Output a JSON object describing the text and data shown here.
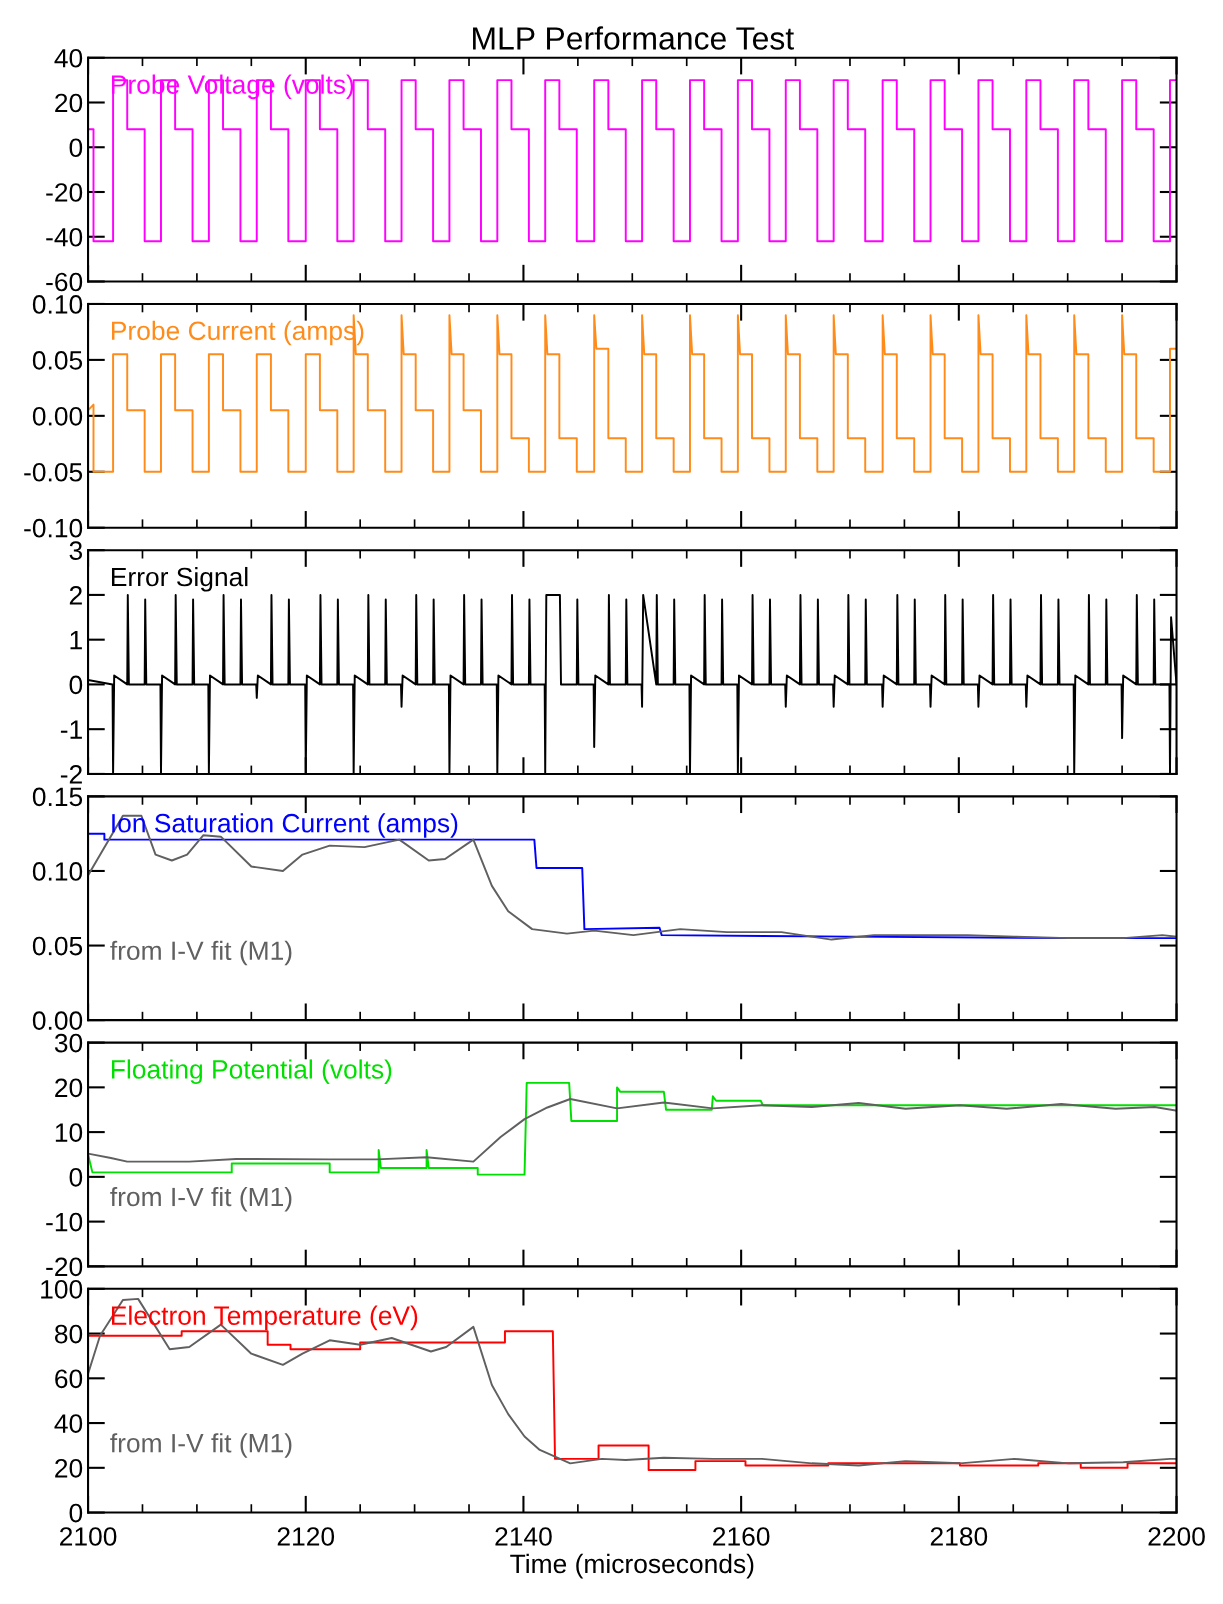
{
  "chart_data": [
    {
      "type": "line",
      "title": "MLP Performance Test",
      "xlim": [
        2100,
        2200
      ],
      "ylim": [
        -60,
        40
      ],
      "yticks": [
        -60,
        -40,
        -20,
        0,
        20,
        40
      ],
      "tick_labels": "y",
      "xticks": [
        2100,
        {
          "value": 2105,
          "label": null
        },
        {
          "value": 2110,
          "label": null
        },
        {
          "value": 2115,
          "label": null
        },
        2120,
        {
          "value": 2125,
          "label": null
        },
        {
          "value": 2130,
          "label": null
        },
        {
          "value": 2135,
          "label": null
        },
        2140,
        {
          "value": 2145,
          "label": null
        },
        {
          "value": 2150,
          "label": null
        },
        {
          "value": 2155,
          "label": null
        },
        2160,
        {
          "value": 2165,
          "label": null
        },
        {
          "value": 2170,
          "label": null
        },
        {
          "value": 2175,
          "label": null
        },
        2180,
        {
          "value": 2185,
          "label": null
        },
        {
          "value": 2190,
          "label": null
        },
        {
          "value": 2195,
          "label": null
        },
        2200
      ],
      "series": [
        {
          "name": "Probe Voltage (volts)",
          "color": "#ff00ff",
          "x": [
            2100,
            2100.5,
            2100.5,
            2102.3,
            2102.3,
            2103.6,
            2103.6,
            2105.2,
            2105.2,
            2106.7,
            2106.7,
            2108.0,
            2108.0,
            2109.6,
            2109.6,
            2111.1,
            2111.1,
            2112.4,
            2112.4,
            2114.0,
            2114.0,
            2115.5,
            2115.5,
            2116.8,
            2116.8,
            2118.4,
            2118.4,
            2120.0,
            2120.0,
            2121.3,
            2121.3,
            2122.9,
            2122.9,
            2124.4,
            2124.4,
            2125.7,
            2125.7,
            2127.3,
            2127.3,
            2128.8,
            2128.8,
            2130.1,
            2130.1,
            2131.7,
            2131.7,
            2133.2,
            2133.2,
            2134.5,
            2134.5,
            2136.1,
            2136.1,
            2137.6,
            2137.6,
            2138.9,
            2138.9,
            2140.5,
            2140.5,
            2142.0,
            2142.0,
            2143.3,
            2143.3,
            2144.9,
            2144.9,
            2146.5,
            2146.5,
            2147.8,
            2147.8,
            2149.4,
            2149.4,
            2150.9,
            2150.9,
            2152.2,
            2152.2,
            2153.8,
            2153.8,
            2155.3,
            2155.3,
            2156.6,
            2156.6,
            2158.2,
            2158.2,
            2159.7,
            2159.7,
            2161.0,
            2161.0,
            2162.6,
            2162.6,
            2164.1,
            2164.1,
            2165.4,
            2165.4,
            2167.0,
            2167.0,
            2168.5,
            2168.5,
            2169.8,
            2169.8,
            2171.4,
            2171.4,
            2173.0,
            2173.0,
            2174.3,
            2174.3,
            2175.9,
            2175.9,
            2177.4,
            2177.4,
            2178.7,
            2178.7,
            2180.3,
            2180.3,
            2181.8,
            2181.8,
            2183.1,
            2183.1,
            2184.7,
            2184.7,
            2186.2,
            2186.2,
            2187.5,
            2187.5,
            2189.1,
            2189.1,
            2190.6,
            2190.6,
            2191.9,
            2191.9,
            2193.5,
            2193.5,
            2195.0,
            2195.0,
            2196.3,
            2196.3,
            2197.9,
            2197.9,
            2199.4,
            2199.4,
            2200
          ],
          "values": [
            8,
            8,
            -42,
            -42,
            30,
            30,
            8,
            8,
            -42,
            -42,
            30,
            30,
            8,
            8,
            -42,
            -42,
            30,
            30,
            8,
            8,
            -42,
            -42,
            30,
            30,
            8,
            8,
            -42,
            -42,
            30,
            30,
            8,
            8,
            -42,
            -42,
            30,
            30,
            8,
            8,
            -42,
            -42,
            30,
            30,
            8,
            8,
            -42,
            -42,
            30,
            30,
            8,
            8,
            -42,
            -42,
            30,
            30,
            8,
            8,
            -42,
            -42,
            30,
            30,
            8,
            8,
            -42,
            -42,
            30,
            30,
            8,
            8,
            -42,
            -42,
            30,
            30,
            8,
            8,
            -42,
            -42,
            30,
            30,
            8,
            8,
            -42,
            -42,
            30,
            30,
            8,
            8,
            -42,
            -42,
            30,
            30,
            8,
            8,
            -42,
            -42,
            30,
            30,
            8,
            8,
            -42,
            -42,
            30,
            30,
            8,
            8,
            -42,
            -42,
            30,
            30,
            8,
            8,
            -42,
            -42,
            30,
            30,
            8,
            8,
            -42,
            -42,
            30,
            30,
            8,
            8,
            -42,
            -42,
            30,
            30,
            8,
            8,
            -42,
            -42,
            30,
            30,
            8,
            8,
            -42,
            -42,
            30,
            30
          ]
        }
      ]
    },
    {
      "type": "line",
      "xlim": [
        2100,
        2200
      ],
      "ylim": [
        -0.1,
        0.1
      ],
      "yticks": [
        {
          "value": -0.1,
          "label": "-0.10"
        },
        {
          "value": -0.05,
          "label": "-0.05"
        },
        {
          "value": 0,
          "label": "0.00"
        },
        {
          "value": 0.05,
          "label": "0.05"
        },
        {
          "value": 0.1,
          "label": "0.10"
        }
      ],
      "tick_labels": "y",
      "xticks": [
        2100,
        {
          "value": 2105,
          "label": null
        },
        {
          "value": 2110,
          "label": null
        },
        {
          "value": 2115,
          "label": null
        },
        2120,
        {
          "value": 2125,
          "label": null
        },
        {
          "value": 2130,
          "label": null
        },
        {
          "value": 2135,
          "label": null
        },
        2140,
        {
          "value": 2145,
          "label": null
        },
        {
          "value": 2150,
          "label": null
        },
        {
          "value": 2155,
          "label": null
        },
        2160,
        {
          "value": 2165,
          "label": null
        },
        {
          "value": 2170,
          "label": null
        },
        {
          "value": 2175,
          "label": null
        },
        2180,
        {
          "value": 2185,
          "label": null
        },
        {
          "value": 2190,
          "label": null
        },
        {
          "value": 2195,
          "label": null
        },
        2200
      ],
      "series": [
        {
          "name": "Probe Current (amps)",
          "color": "#ff8c1a",
          "x": [
            2100,
            2100.5,
            2100.5,
            2102.3,
            2102.3,
            2102.5,
            2103.6,
            2103.6,
            2105.2,
            2105.2,
            2106.7,
            2106.7,
            2106.9,
            2108.0,
            2108.0,
            2109.6,
            2109.6,
            2111.1,
            2111.1,
            2111.3,
            2112.4,
            2112.4,
            2114.0,
            2114.0,
            2115.5,
            2115.5,
            2115.7,
            2116.8,
            2116.8,
            2118.4,
            2118.4,
            2120.0,
            2120.0,
            2120.2,
            2121.3,
            2121.3,
            2122.9,
            2122.9,
            2124.4,
            2124.4,
            2124.6,
            2125.7,
            2125.7,
            2127.3,
            2127.3,
            2128.8,
            2128.8,
            2129.0,
            2130.1,
            2130.1,
            2131.7,
            2131.7,
            2133.2,
            2133.2,
            2133.4,
            2134.5,
            2134.5,
            2136.1,
            2136.1,
            2137.6,
            2137.6,
            2137.8,
            2138.9,
            2138.9,
            2140.5,
            2140.5,
            2142.0,
            2142.0,
            2142.2,
            2143.3,
            2143.3,
            2144.9,
            2144.9,
            2146.5,
            2146.5,
            2146.7,
            2147.8,
            2147.8,
            2149.4,
            2149.4,
            2150.9,
            2150.9,
            2151.1,
            2152.2,
            2152.2,
            2153.8,
            2153.8,
            2155.3,
            2155.3,
            2155.5,
            2156.6,
            2156.6,
            2158.2,
            2158.2,
            2159.7,
            2159.7,
            2159.9,
            2161.0,
            2161.0,
            2162.6,
            2162.6,
            2164.1,
            2164.1,
            2164.3,
            2165.4,
            2165.4,
            2167.0,
            2167.0,
            2168.5,
            2168.5,
            2168.7,
            2169.8,
            2169.8,
            2171.4,
            2171.4,
            2173.0,
            2173.0,
            2173.2,
            2174.3,
            2174.3,
            2175.9,
            2175.9,
            2177.4,
            2177.4,
            2177.6,
            2178.7,
            2178.7,
            2180.3,
            2180.3,
            2181.8,
            2181.8,
            2182.0,
            2183.1,
            2183.1,
            2184.7,
            2184.7,
            2186.2,
            2186.2,
            2186.4,
            2187.5,
            2187.5,
            2189.1,
            2189.1,
            2190.6,
            2190.6,
            2190.8,
            2191.9,
            2191.9,
            2193.5,
            2193.5,
            2195.0,
            2195.0,
            2195.2,
            2196.3,
            2196.3,
            2197.9,
            2197.9,
            2199.4,
            2199.4,
            2200
          ],
          "values": [
            0.005,
            0.01,
            -0.05,
            -0.05,
            0.055,
            0.055,
            0.055,
            0.005,
            0.005,
            -0.05,
            -0.05,
            0.055,
            0.055,
            0.055,
            0.005,
            0.005,
            -0.05,
            -0.05,
            0.055,
            0.055,
            0.055,
            0.005,
            0.005,
            -0.05,
            -0.05,
            0.055,
            0.055,
            0.055,
            0.005,
            0.005,
            -0.05,
            -0.05,
            0.055,
            0.055,
            0.055,
            0.005,
            0.005,
            -0.05,
            -0.05,
            0.09,
            0.055,
            0.055,
            0.005,
            0.005,
            -0.05,
            -0.05,
            0.09,
            0.055,
            0.055,
            0.005,
            0.005,
            -0.05,
            -0.05,
            0.09,
            0.055,
            0.055,
            0.005,
            0.005,
            -0.05,
            -0.05,
            0.09,
            0.055,
            0.055,
            -0.02,
            -0.02,
            -0.05,
            -0.05,
            0.09,
            0.055,
            0.055,
            -0.02,
            -0.02,
            -0.05,
            -0.05,
            0.09,
            0.06,
            0.06,
            -0.02,
            -0.02,
            -0.05,
            -0.05,
            0.09,
            0.055,
            0.055,
            -0.02,
            -0.02,
            -0.05,
            -0.05,
            0.09,
            0.055,
            0.055,
            -0.02,
            -0.02,
            -0.05,
            -0.05,
            0.09,
            0.055,
            0.055,
            -0.02,
            -0.02,
            -0.05,
            -0.05,
            0.09,
            0.055,
            0.055,
            -0.02,
            -0.02,
            -0.05,
            -0.05,
            0.09,
            0.055,
            0.055,
            -0.02,
            -0.02,
            -0.05,
            -0.05,
            0.09,
            0.055,
            0.055,
            -0.02,
            -0.02,
            -0.05,
            -0.05,
            0.09,
            0.055,
            0.055,
            -0.02,
            -0.02,
            -0.05,
            -0.05,
            0.09,
            0.055,
            0.055,
            -0.02,
            -0.02,
            -0.05,
            -0.05,
            0.09,
            0.055,
            0.055,
            -0.02,
            -0.02,
            -0.05,
            -0.05,
            0.09,
            0.055,
            0.055,
            -0.02,
            -0.02,
            -0.05,
            -0.05,
            0.09,
            0.055,
            0.055,
            -0.02,
            -0.02,
            -0.05,
            -0.05,
            0.06,
            0.06
          ]
        }
      ]
    },
    {
      "type": "line",
      "xlim": [
        2100,
        2200
      ],
      "ylim": [
        -2,
        3
      ],
      "yticks": [
        -2,
        -1,
        0,
        1,
        2,
        3
      ],
      "tick_labels": "y",
      "xticks": [
        2100,
        {
          "value": 2105,
          "label": null
        },
        {
          "value": 2110,
          "label": null
        },
        {
          "value": 2115,
          "label": null
        },
        2120,
        {
          "value": 2125,
          "label": null
        },
        {
          "value": 2130,
          "label": null
        },
        {
          "value": 2135,
          "label": null
        },
        2140,
        {
          "value": 2145,
          "label": null
        },
        {
          "value": 2150,
          "label": null
        },
        {
          "value": 2155,
          "label": null
        },
        2160,
        {
          "value": 2165,
          "label": null
        },
        {
          "value": 2170,
          "label": null
        },
        {
          "value": 2175,
          "label": null
        },
        2180,
        {
          "value": 2185,
          "label": null
        },
        {
          "value": 2190,
          "label": null
        },
        {
          "value": 2195,
          "label": null
        },
        2200
      ],
      "series": [
        {
          "name": "Error Signal",
          "color": "#000000",
          "x": [
            2100,
            2102.25,
            2102.3,
            2102.4,
            2103.6,
            2103.65,
            2103.75,
            2105.2,
            2105.25,
            2105.35,
            2106.65,
            2106.7,
            2106.8,
            2108.0,
            2108.05,
            2108.15,
            2109.6,
            2109.65,
            2109.75,
            2111.05,
            2111.1,
            2111.2,
            2112.4,
            2112.45,
            2112.55,
            2114.0,
            2114.05,
            2114.15,
            2115.45,
            2115.5,
            2115.6,
            2116.8,
            2116.85,
            2116.95,
            2118.4,
            2118.45,
            2118.55,
            2119.95,
            2120.0,
            2120.1,
            2121.3,
            2121.35,
            2121.45,
            2122.9,
            2122.95,
            2123.05,
            2124.35,
            2124.4,
            2124.5,
            2125.7,
            2125.75,
            2125.85,
            2127.3,
            2127.35,
            2127.45,
            2128.75,
            2128.8,
            2128.9,
            2130.1,
            2130.15,
            2130.25,
            2131.7,
            2131.75,
            2131.85,
            2133.15,
            2133.2,
            2133.3,
            2134.5,
            2134.55,
            2134.65,
            2136.1,
            2136.15,
            2136.25,
            2137.55,
            2137.6,
            2137.7,
            2138.9,
            2138.95,
            2139.05,
            2140.5,
            2140.55,
            2140.65,
            2141.95,
            2142.0,
            2142.1,
            2143.3,
            2143.35,
            2143.45,
            2144.9,
            2144.95,
            2145.05,
            2146.45,
            2146.5,
            2146.6,
            2147.8,
            2147.85,
            2147.95,
            2149.4,
            2149.45,
            2149.55,
            2150.85,
            2150.9,
            2151.0,
            2152.2,
            2152.25,
            2152.35,
            2153.8,
            2153.85,
            2153.95,
            2155.25,
            2155.3,
            2155.4,
            2156.6,
            2156.65,
            2156.75,
            2158.2,
            2158.25,
            2158.35,
            2159.65,
            2159.7,
            2159.8,
            2161.0,
            2161.05,
            2161.15,
            2162.6,
            2162.65,
            2162.75,
            2164.05,
            2164.1,
            2164.2,
            2165.4,
            2165.45,
            2165.55,
            2167.0,
            2167.05,
            2167.15,
            2168.45,
            2168.5,
            2168.6,
            2169.8,
            2169.85,
            2169.95,
            2171.4,
            2171.45,
            2171.55,
            2172.95,
            2173.0,
            2173.1,
            2174.3,
            2174.35,
            2174.45,
            2175.9,
            2175.95,
            2176.05,
            2177.35,
            2177.4,
            2177.5,
            2178.7,
            2178.75,
            2178.85,
            2180.3,
            2180.35,
            2180.45,
            2181.75,
            2181.8,
            2181.9,
            2183.1,
            2183.15,
            2183.25,
            2184.7,
            2184.75,
            2184.85,
            2186.15,
            2186.2,
            2186.3,
            2187.5,
            2187.55,
            2187.65,
            2189.1,
            2189.15,
            2189.25,
            2190.55,
            2190.6,
            2190.7,
            2191.9,
            2191.95,
            2192.05,
            2193.5,
            2193.55,
            2193.65,
            2194.95,
            2195.0,
            2195.1,
            2196.3,
            2196.35,
            2196.45,
            2197.9,
            2197.95,
            2198.05,
            2199.35,
            2199.4,
            2199.5,
            2200
          ],
          "values": [
            0.1,
            0,
            -2,
            0.2,
            0,
            2,
            0,
            0,
            1.9,
            0,
            0,
            -2,
            0.2,
            0,
            2,
            0,
            0,
            1.9,
            0,
            0,
            -2,
            0.2,
            0,
            2,
            0,
            0,
            1.9,
            0,
            0,
            -0.3,
            0.2,
            0,
            2,
            0,
            0,
            1.9,
            0,
            0,
            -2,
            0.2,
            0,
            2,
            0,
            0,
            1.9,
            0,
            0,
            -2,
            0.2,
            0,
            2,
            0,
            0,
            1.9,
            0,
            0,
            -0.5,
            0.2,
            0,
            2,
            0,
            0,
            1.9,
            0,
            0,
            -2,
            0.2,
            0,
            2,
            0,
            0,
            1.9,
            0,
            0,
            -2,
            0.2,
            0,
            2,
            0,
            0,
            1.9,
            0,
            0,
            -2,
            2,
            2,
            2,
            0,
            0,
            1.9,
            0,
            0,
            -1.4,
            0.2,
            0,
            2,
            0,
            0,
            1.9,
            0,
            0,
            -0.5,
            2,
            0,
            2,
            0,
            0,
            1.9,
            0,
            0,
            -2,
            0.2,
            0,
            2,
            0,
            0,
            1.9,
            0,
            0,
            -2,
            0.2,
            0,
            2,
            0,
            0,
            1.9,
            0,
            0,
            -0.5,
            0.2,
            0,
            2,
            0,
            0,
            1.9,
            0,
            0,
            -0.5,
            0.2,
            0,
            2,
            0,
            0,
            1.9,
            0,
            0,
            -0.5,
            0.2,
            0,
            2,
            0,
            0,
            1.9,
            0,
            0,
            -0.5,
            0.2,
            0,
            2,
            0,
            0,
            1.9,
            0,
            0,
            -0.5,
            0.2,
            0,
            2,
            0,
            0,
            1.9,
            0,
            0,
            -0.5,
            0.2,
            0,
            2,
            0,
            0,
            1.9,
            0,
            0,
            -2,
            0.2,
            0,
            2,
            0,
            0,
            1.9,
            0,
            0,
            -1.2,
            0.2,
            0,
            2,
            0,
            0,
            1.9,
            0,
            0,
            -2,
            1.5,
            0
          ]
        }
      ]
    },
    {
      "type": "line",
      "xlim": [
        2100,
        2200
      ],
      "ylim": [
        0,
        0.15
      ],
      "yticks": [
        {
          "value": 0,
          "label": "0.00"
        },
        {
          "value": 0.05,
          "label": "0.05"
        },
        {
          "value": 0.1,
          "label": "0.10"
        },
        {
          "value": 0.15,
          "label": "0.15"
        }
      ],
      "tick_labels": "y",
      "xticks": [
        2100,
        {
          "value": 2105,
          "label": null
        },
        {
          "value": 2110,
          "label": null
        },
        {
          "value": 2115,
          "label": null
        },
        2120,
        {
          "value": 2125,
          "label": null
        },
        {
          "value": 2130,
          "label": null
        },
        {
          "value": 2135,
          "label": null
        },
        2140,
        {
          "value": 2145,
          "label": null
        },
        {
          "value": 2150,
          "label": null
        },
        {
          "value": 2155,
          "label": null
        },
        2160,
        {
          "value": 2165,
          "label": null
        },
        {
          "value": 2170,
          "label": null
        },
        {
          "value": 2175,
          "label": null
        },
        2180,
        {
          "value": 2185,
          "label": null
        },
        {
          "value": 2190,
          "label": null
        },
        {
          "value": 2195,
          "label": null
        },
        2200
      ],
      "series": [
        {
          "name": "Ion Saturation Current (amps)",
          "color": "#0000ff",
          "x": [
            2100,
            2101.5,
            2101.5,
            2141.0,
            2141.2,
            2145.4,
            2145.6,
            2152.5,
            2152.7,
            2170,
            2190,
            2200
          ],
          "values": [
            0.125,
            0.125,
            0.121,
            0.121,
            0.102,
            0.102,
            0.061,
            0.062,
            0.057,
            0.056,
            0.055,
            0.055
          ]
        },
        {
          "name": "from I-V fit (M1)",
          "color": "#606060",
          "x": [
            2100,
            2103.2,
            2104.9,
            2106.2,
            2107.7,
            2109.1,
            2110.6,
            2112.2,
            2115.0,
            2117.9,
            2119.7,
            2122.2,
            2125.4,
            2128.6,
            2131.3,
            2132.8,
            2135.4,
            2137.1,
            2138.6,
            2140.8,
            2144.0,
            2146.5,
            2150.1,
            2154.4,
            2158.7,
            2163.7,
            2168.3,
            2172.2,
            2176.5,
            2180.8,
            2185.1,
            2190.1,
            2195.1,
            2198.7,
            2200
          ],
          "values": [
            0.097,
            0.137,
            0.137,
            0.111,
            0.107,
            0.111,
            0.124,
            0.123,
            0.103,
            0.1,
            0.111,
            0.117,
            0.116,
            0.121,
            0.107,
            0.108,
            0.121,
            0.09,
            0.073,
            0.061,
            0.058,
            0.06,
            0.057,
            0.061,
            0.059,
            0.059,
            0.054,
            0.057,
            0.057,
            0.057,
            0.056,
            0.055,
            0.055,
            0.057,
            0.056
          ]
        }
      ]
    },
    {
      "type": "line",
      "xlim": [
        2100,
        2200
      ],
      "ylim": [
        -20,
        30
      ],
      "yticks": [
        -20,
        -10,
        0,
        10,
        20,
        30
      ],
      "tick_labels": "y",
      "xticks": [
        2100,
        {
          "value": 2105,
          "label": null
        },
        {
          "value": 2110,
          "label": null
        },
        {
          "value": 2115,
          "label": null
        },
        2120,
        {
          "value": 2125,
          "label": null
        },
        {
          "value": 2130,
          "label": null
        },
        {
          "value": 2135,
          "label": null
        },
        2140,
        {
          "value": 2145,
          "label": null
        },
        {
          "value": 2150,
          "label": null
        },
        {
          "value": 2155,
          "label": null
        },
        2160,
        {
          "value": 2165,
          "label": null
        },
        {
          "value": 2170,
          "label": null
        },
        {
          "value": 2175,
          "label": null
        },
        2180,
        {
          "value": 2185,
          "label": null
        },
        {
          "value": 2190,
          "label": null
        },
        {
          "value": 2195,
          "label": null
        },
        2200
      ],
      "series": [
        {
          "name": "Floating Potential (volts)",
          "color": "#00e000",
          "x": [
            2100,
            2100.4,
            2113.2,
            2113.2,
            2122.2,
            2122.2,
            2126.7,
            2126.7,
            2126.9,
            2131.1,
            2131.1,
            2131.3,
            2135.8,
            2135.8,
            2140.1,
            2140.3,
            2144.2,
            2144.4,
            2148.6,
            2148.6,
            2148.9,
            2152.9,
            2153.1,
            2157.3,
            2157.4,
            2157.7,
            2161.8,
            2162.0,
            2200
          ],
          "values": [
            5,
            1,
            1,
            3,
            3,
            1,
            1,
            6,
            2,
            2,
            6,
            2,
            2,
            0.5,
            0.5,
            21,
            21,
            12.5,
            12.5,
            20,
            19,
            19,
            15,
            15,
            18,
            17,
            17,
            16,
            16
          ]
        },
        {
          "name": "from I-V fit (M1)",
          "color": "#606060",
          "x": [
            2100,
            2102.1,
            2103.6,
            2109.3,
            2113.6,
            2122.2,
            2126.5,
            2131.1,
            2135.4,
            2137.9,
            2140.1,
            2142.2,
            2144.3,
            2148.6,
            2152.9,
            2157.4,
            2161.9,
            2166.5,
            2170.8,
            2175.1,
            2180.1,
            2184.4,
            2189.4,
            2194.4,
            2198.0,
            2200
          ],
          "values": [
            5.2,
            4.2,
            3.4,
            3.4,
            4,
            3.9,
            3.9,
            4.4,
            3.4,
            8.9,
            12.9,
            15.5,
            17.4,
            15.3,
            16.6,
            15.3,
            16,
            15.6,
            16.5,
            15.2,
            16,
            15.2,
            16.3,
            15.2,
            15.6,
            14.8
          ]
        }
      ]
    },
    {
      "type": "line",
      "xlabel": "Time (microseconds)",
      "xlim": [
        2100,
        2200
      ],
      "ylim": [
        0,
        100
      ],
      "yticks": [
        0,
        20,
        40,
        60,
        80,
        100
      ],
      "xticks": [
        2100,
        {
          "value": 2105,
          "label": null
        },
        {
          "value": 2110,
          "label": null
        },
        {
          "value": 2115,
          "label": null
        },
        2120,
        {
          "value": 2125,
          "label": null
        },
        {
          "value": 2130,
          "label": null
        },
        {
          "value": 2135,
          "label": null
        },
        2140,
        {
          "value": 2145,
          "label": null
        },
        {
          "value": 2150,
          "label": null
        },
        {
          "value": 2155,
          "label": null
        },
        2160,
        {
          "value": 2165,
          "label": null
        },
        {
          "value": 2170,
          "label": null
        },
        {
          "value": 2175,
          "label": null
        },
        2180,
        {
          "value": 2185,
          "label": null
        },
        {
          "value": 2190,
          "label": null
        },
        {
          "value": 2195,
          "label": null
        },
        2200
      ],
      "series": [
        {
          "name": "Electron Temperature (eV)",
          "color": "#ff0000",
          "x": [
            2100,
            2108.6,
            2108.6,
            2116.5,
            2116.5,
            2118.6,
            2118.6,
            2125.0,
            2125.0,
            2138.3,
            2138.3,
            2142.7,
            2142.9,
            2146.9,
            2146.9,
            2151.5,
            2151.5,
            2155.8,
            2155.8,
            2160.4,
            2160.4,
            2168.0,
            2168.0,
            2180.1,
            2180.1,
            2187.3,
            2187.3,
            2191.2,
            2191.2,
            2195.5,
            2195.5,
            2200
          ],
          "values": [
            79,
            79,
            81,
            81,
            75,
            75,
            73,
            73,
            76,
            76,
            81,
            81,
            24,
            24,
            30,
            30,
            19,
            19,
            23,
            23,
            21,
            21,
            22,
            22,
            21,
            21,
            22,
            22,
            20,
            20,
            22,
            22
          ]
        },
        {
          "name": "from I-V fit (M1)",
          "color": "#606060",
          "x": [
            2100,
            2101.1,
            2103.2,
            2104.6,
            2107.5,
            2109.3,
            2112.2,
            2115.0,
            2117.9,
            2119.7,
            2122.2,
            2125.0,
            2127.9,
            2131.5,
            2132.9,
            2135.4,
            2137.1,
            2138.6,
            2140.1,
            2141.5,
            2144.3,
            2147.2,
            2149.4,
            2152.9,
            2157.4,
            2161.9,
            2166.5,
            2170.8,
            2175.1,
            2180.1,
            2185.1,
            2190.1,
            2195.1,
            2199.4,
            2200
          ],
          "values": [
            62,
            79,
            95,
            95.5,
            73,
            74,
            84,
            71,
            66,
            71,
            77,
            75,
            78,
            72,
            74,
            83,
            57,
            44,
            34,
            28,
            22,
            24,
            23.5,
            24.5,
            24,
            24,
            22,
            21,
            23,
            22,
            24,
            22,
            22.5,
            24,
            24
          ]
        }
      ]
    }
  ]
}
